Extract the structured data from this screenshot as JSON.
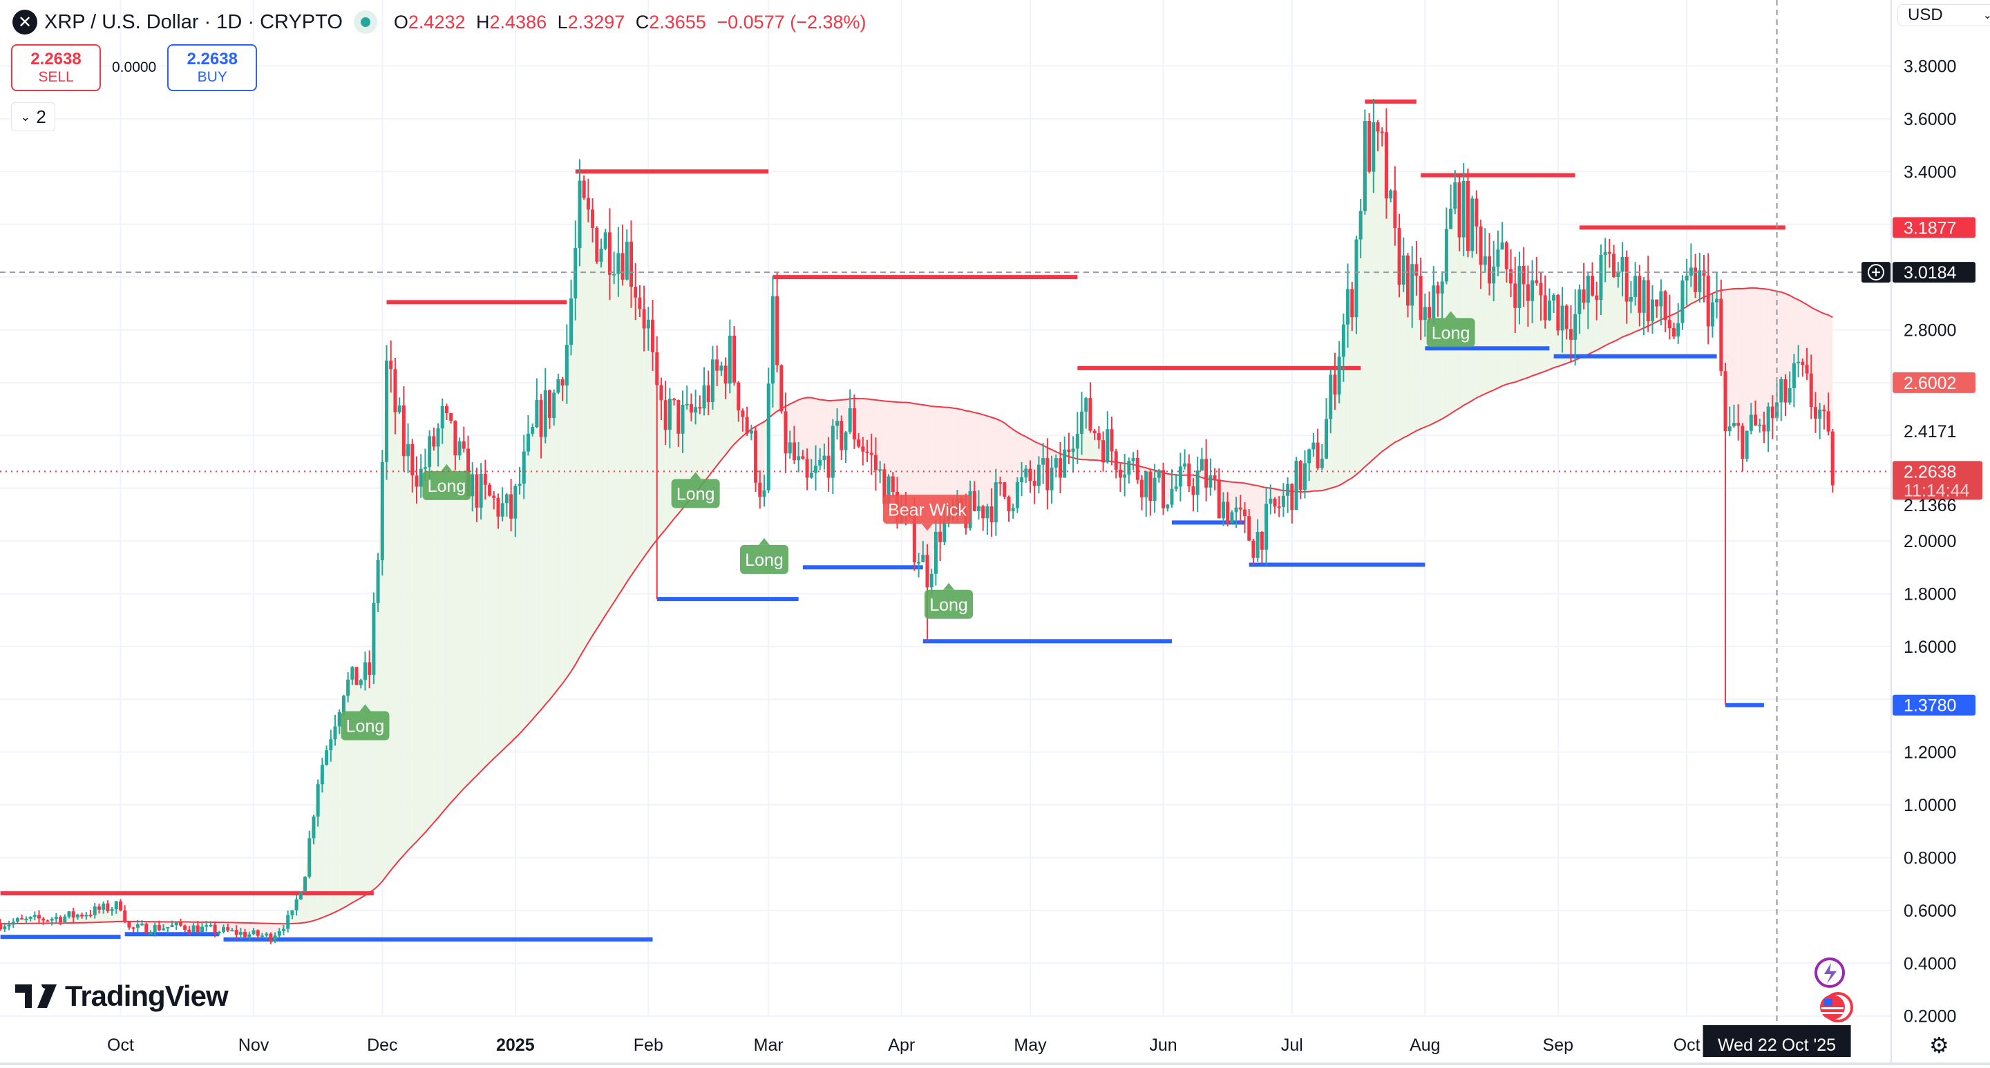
{
  "header": {
    "symbol_icon": "xrp-logo-icon",
    "title": "XRP / U.S. Dollar · 1D · CRYPTO",
    "ohlc": {
      "o_label": "O",
      "o": "2.4232",
      "h_label": "H",
      "h": "2.4386",
      "l_label": "L",
      "l": "2.3297",
      "c_label": "C",
      "c": "2.3655",
      "change": "−0.0577 (−2.38%)"
    }
  },
  "trade": {
    "sell_price": "2.2638",
    "sell_label": "SELL",
    "spread": "0.0000",
    "buy_price": "2.2638",
    "buy_label": "BUY"
  },
  "indicators_toggle": {
    "icon": "chevron-down-icon",
    "count": "2"
  },
  "currency": {
    "label": "USD",
    "icon": "chevron-down-icon"
  },
  "logo": "TradingView",
  "colors": {
    "up": "#26a69a",
    "down": "#f23645",
    "resistance": "#f23645",
    "support": "#2962ff",
    "ma": "#f23645",
    "signal": "#5aa85a",
    "fill_up": "#eef6ea",
    "fill_down": "#fdeceb"
  },
  "chart_data": {
    "type": "candlestick",
    "symbol": "XRPUSD",
    "interval": "1D",
    "ylim": [
      0.2,
      3.8
    ],
    "y_ticks": [
      "3.8000",
      "3.6000",
      "3.4000",
      "2.8000",
      "2.0000",
      "1.8000",
      "1.6000",
      "1.2000",
      "1.0000",
      "0.8000",
      "0.6000",
      "0.4000",
      "0.2000"
    ],
    "x_ticks": [
      {
        "label": "Oct",
        "date": "2024-10-01"
      },
      {
        "label": "Nov",
        "date": "2024-11-01"
      },
      {
        "label": "Dec",
        "date": "2024-12-01"
      },
      {
        "label": "2025",
        "date": "2025-01-01",
        "bold": true
      },
      {
        "label": "Feb",
        "date": "2025-02-01"
      },
      {
        "label": "Mar",
        "date": "2025-03-01"
      },
      {
        "label": "Apr",
        "date": "2025-04-01"
      },
      {
        "label": "May",
        "date": "2025-05-01"
      },
      {
        "label": "Jun",
        "date": "2025-06-01"
      },
      {
        "label": "Jul",
        "date": "2025-07-01"
      },
      {
        "label": "Aug",
        "date": "2025-08-01"
      },
      {
        "label": "Sep",
        "date": "2025-09-01"
      },
      {
        "label": "Oct",
        "date": "2025-10-01"
      }
    ],
    "price_path": [
      [
        "2024-09-03",
        0.55
      ],
      [
        "2024-09-20",
        0.58
      ],
      [
        "2024-10-01",
        0.62
      ],
      [
        "2024-10-03",
        0.53
      ],
      [
        "2024-10-15",
        0.54
      ],
      [
        "2024-11-05",
        0.5
      ],
      [
        "2024-11-10",
        0.58
      ],
      [
        "2024-11-13",
        0.75
      ],
      [
        "2024-11-16",
        1.1
      ],
      [
        "2024-11-22",
        1.45
      ],
      [
        "2024-11-28",
        1.5
      ],
      [
        "2024-11-30",
        1.95
      ],
      [
        "2024-12-02",
        2.65
      ],
      [
        "2024-12-06",
        2.35
      ],
      [
        "2024-12-10",
        2.25
      ],
      [
        "2024-12-15",
        2.45
      ],
      [
        "2024-12-22",
        2.2
      ],
      [
        "2024-12-31",
        2.1
      ],
      [
        "2025-01-06",
        2.45
      ],
      [
        "2025-01-10",
        2.55
      ],
      [
        "2025-01-13",
        2.75
      ],
      [
        "2025-01-16",
        3.25
      ],
      [
        "2025-01-20",
        3.15
      ],
      [
        "2025-01-27",
        3.1
      ],
      [
        "2025-02-01",
        2.8
      ],
      [
        "2025-02-03",
        2.5
      ],
      [
        "2025-02-10",
        2.45
      ],
      [
        "2025-02-20",
        2.7
      ],
      [
        "2025-02-28",
        2.15
      ],
      [
        "2025-03-02",
        2.9
      ],
      [
        "2025-03-04",
        2.4
      ],
      [
        "2025-03-10",
        2.2
      ],
      [
        "2025-03-20",
        2.45
      ],
      [
        "2025-04-01",
        2.1
      ],
      [
        "2025-04-07",
        1.88
      ],
      [
        "2025-04-10",
        2.05
      ],
      [
        "2025-04-22",
        2.15
      ],
      [
        "2025-05-01",
        2.22
      ],
      [
        "2025-05-08",
        2.25
      ],
      [
        "2025-05-12",
        2.5
      ],
      [
        "2025-05-20",
        2.35
      ],
      [
        "2025-06-01",
        2.18
      ],
      [
        "2025-06-10",
        2.25
      ],
      [
        "2025-06-22",
        2.0
      ],
      [
        "2025-07-01",
        2.2
      ],
      [
        "2025-07-08",
        2.35
      ],
      [
        "2025-07-12",
        2.75
      ],
      [
        "2025-07-15",
        2.95
      ],
      [
        "2025-07-18",
        3.5
      ],
      [
        "2025-07-22",
        3.45
      ],
      [
        "2025-07-25",
        3.1
      ],
      [
        "2025-08-02",
        2.8
      ],
      [
        "2025-08-08",
        3.3
      ],
      [
        "2025-08-15",
        3.1
      ],
      [
        "2025-08-25",
        2.95
      ],
      [
        "2025-09-05",
        2.85
      ],
      [
        "2025-09-13",
        3.05
      ],
      [
        "2025-09-20",
        2.95
      ],
      [
        "2025-09-28",
        2.8
      ],
      [
        "2025-10-03",
        3.0
      ],
      [
        "2025-10-08",
        2.85
      ],
      [
        "2025-10-10",
        2.4
      ],
      [
        "2025-10-15",
        2.4
      ],
      [
        "2025-10-20",
        2.45
      ],
      [
        "2025-10-27",
        2.62
      ],
      [
        "2025-11-01",
        2.48
      ],
      [
        "2025-11-04",
        2.26
      ]
    ],
    "wick_lows": [
      [
        "2025-02-03",
        1.78
      ],
      [
        "2025-04-07",
        1.62
      ],
      [
        "2025-06-22",
        1.91
      ],
      [
        "2025-10-10",
        1.378
      ]
    ],
    "resistance_levels": [
      {
        "from": "2024-09-03",
        "to": "2024-11-29",
        "price": 0.665
      },
      {
        "from": "2024-12-02",
        "to": "2025-01-13",
        "price": 2.905
      },
      {
        "from": "2025-01-15",
        "to": "2025-03-01",
        "price": 3.4
      },
      {
        "from": "2025-03-02",
        "to": "2025-05-12",
        "price": 3.0
      },
      {
        "from": "2025-05-12",
        "to": "2025-07-17",
        "price": 2.655
      },
      {
        "from": "2025-07-18",
        "to": "2025-07-30",
        "price": 3.665
      },
      {
        "from": "2025-07-31",
        "to": "2025-09-05",
        "price": 3.386
      },
      {
        "from": "2025-09-06",
        "to": "2025-10-24",
        "price": 3.1877
      }
    ],
    "support_levels": [
      {
        "from": "2024-09-03",
        "to": "2024-10-01",
        "price": 0.5
      },
      {
        "from": "2024-10-02",
        "to": "2024-10-24",
        "price": 0.51
      },
      {
        "from": "2024-10-25",
        "to": "2025-02-02",
        "price": 0.49
      },
      {
        "from": "2025-02-03",
        "to": "2025-03-08",
        "price": 1.78
      },
      {
        "from": "2025-03-09",
        "to": "2025-04-06",
        "price": 1.9
      },
      {
        "from": "2025-04-06",
        "to": "2025-06-03",
        "price": 1.62
      },
      {
        "from": "2025-06-03",
        "to": "2025-06-20",
        "price": 2.07
      },
      {
        "from": "2025-06-21",
        "to": "2025-08-01",
        "price": 1.91
      },
      {
        "from": "2025-08-01",
        "to": "2025-08-30",
        "price": 2.73
      },
      {
        "from": "2025-08-31",
        "to": "2025-10-08",
        "price": 2.7
      },
      {
        "from": "2025-10-10",
        "to": "2025-10-19",
        "price": 1.378
      }
    ],
    "signals": [
      {
        "text": "Long",
        "date": "2024-11-27",
        "price": 1.3
      },
      {
        "text": "Long",
        "date": "2024-12-16",
        "price": 2.21
      },
      {
        "text": "Long",
        "date": "2025-02-12",
        "price": 2.18
      },
      {
        "text": "Long",
        "date": "2025-02-28",
        "price": 1.93
      },
      {
        "text": "Bear Wick",
        "date": "2025-04-07",
        "price": 2.12
      },
      {
        "text": "Long",
        "date": "2025-04-12",
        "price": 1.76
      },
      {
        "text": "Long",
        "date": "2025-08-07",
        "price": 2.79
      }
    ],
    "moving_average": {
      "type": "SMA",
      "period": 100,
      "last": "2.6002"
    },
    "price_labels": [
      {
        "value": "3.1877",
        "price": 3.1877,
        "style": "resistance"
      },
      {
        "value": "3.0184",
        "price": 3.0184,
        "style": "crosshair"
      },
      {
        "value": "2.6002",
        "price": 2.6002,
        "style": "ma"
      },
      {
        "value": "2.4171",
        "price": 2.4171,
        "style": "plain"
      },
      {
        "value": "2.2638",
        "price": 2.2638,
        "style": "last",
        "countdown": "11:14:44"
      },
      {
        "value": "2.1366",
        "price": 2.1366,
        "style": "plain"
      },
      {
        "value": "1.3780",
        "price": 1.378,
        "style": "support"
      }
    ],
    "crosshair": {
      "date": "2025-10-22",
      "price": 3.0184,
      "date_label": "Wed 22 Oct '25"
    },
    "last_price": 2.2638
  }
}
